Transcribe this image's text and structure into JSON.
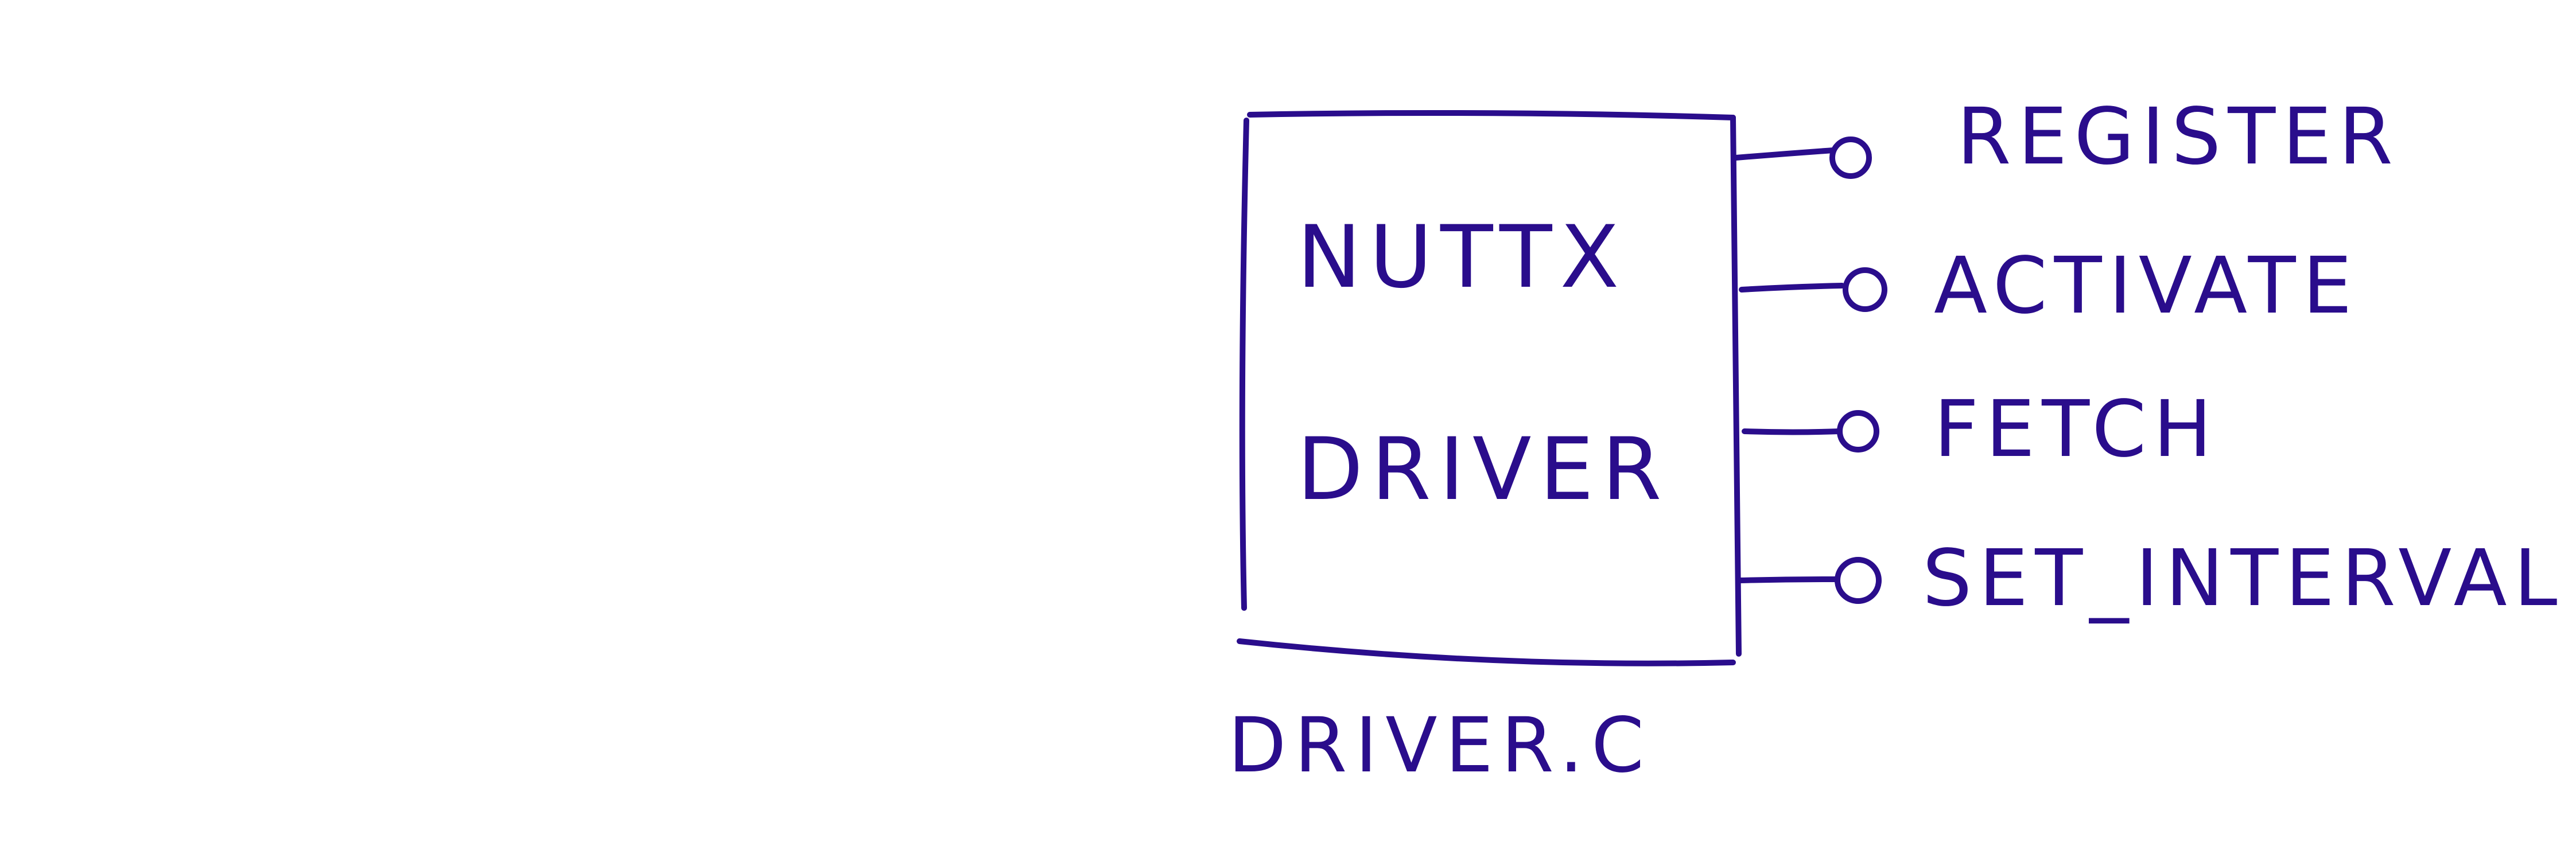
{
  "diagram": {
    "ink_color": "#2a0d8c",
    "background_color": "#ffffff",
    "component": {
      "title_line_1": "NUTTX",
      "title_line_2": "DRIVER",
      "file_label": "DRIVER.C"
    },
    "ports": [
      {
        "label": "REGISTER"
      },
      {
        "label": "ACTIVATE"
      },
      {
        "label": "FETCH"
      },
      {
        "label": "SET_INTERVAL"
      }
    ]
  }
}
